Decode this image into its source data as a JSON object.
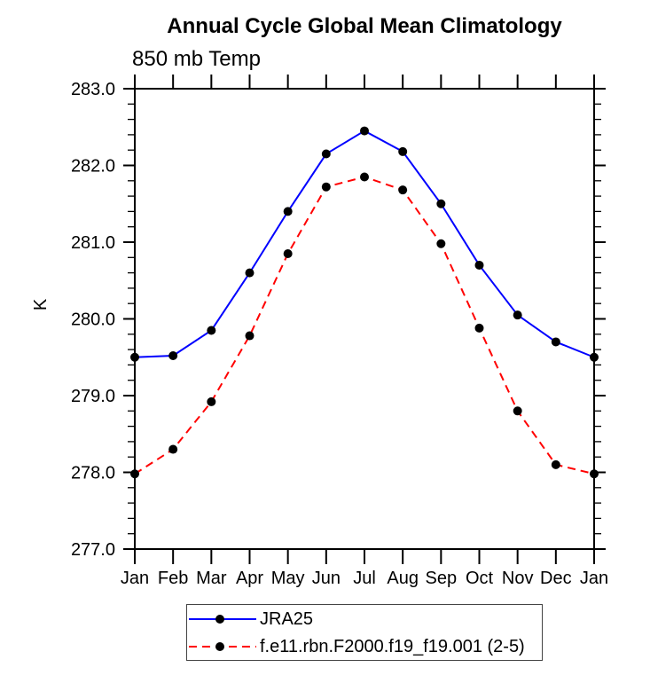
{
  "title": "Annual Cycle Global Mean Climatology",
  "subtitle": "850 mb Temp",
  "chart_data": {
    "type": "line",
    "categories": [
      "Jan",
      "Feb",
      "Mar",
      "Apr",
      "May",
      "Jun",
      "Jul",
      "Aug",
      "Sep",
      "Oct",
      "Nov",
      "Dec",
      "Jan"
    ],
    "xlabel": "",
    "ylabel": "K",
    "ylim": [
      277.0,
      283.0
    ],
    "y_ticks": [
      283.0,
      282.0,
      281.0,
      280.0,
      279.0,
      278.0,
      277.0
    ],
    "y_minor_step": 0.2,
    "grid": false,
    "legend_position": "bottom",
    "axis_color": "#000000",
    "marker": "filled-circle",
    "marker_color": "#000000",
    "series": [
      {
        "name": "JRA25",
        "color": "#0000ff",
        "style": "solid",
        "values": [
          279.5,
          279.52,
          279.85,
          280.6,
          281.4,
          282.15,
          282.45,
          282.18,
          281.5,
          280.7,
          280.05,
          279.7,
          279.5
        ]
      },
      {
        "name": "f.e11.rbn.F2000.f19_f19.001 (2-5)",
        "color": "#ff0000",
        "style": "dashed",
        "values": [
          277.98,
          278.3,
          278.92,
          279.78,
          280.85,
          281.72,
          281.85,
          281.68,
          280.98,
          279.88,
          278.8,
          278.1,
          277.98
        ]
      }
    ]
  }
}
